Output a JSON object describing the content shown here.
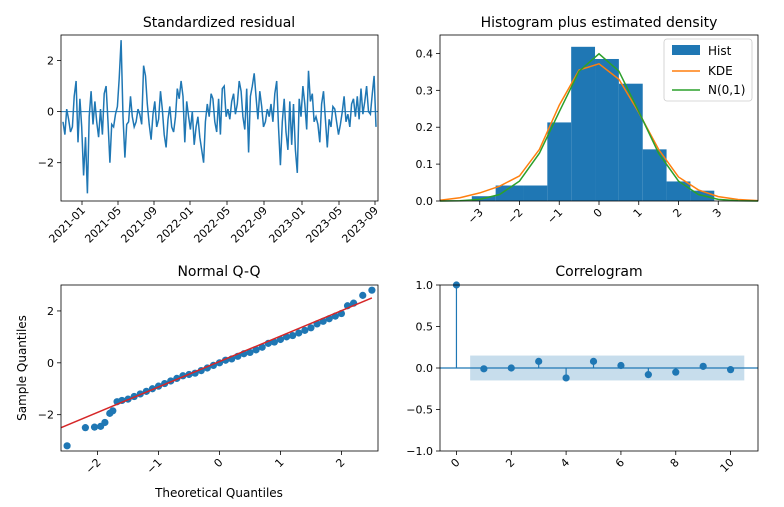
{
  "chart_data": [
    {
      "type": "line",
      "title": "Standardized residual",
      "xlabel": "",
      "ylabel": "",
      "ylim": [
        -3.5,
        3.0
      ],
      "y_ticks": [
        -2,
        0,
        2
      ],
      "x_tick_labels": [
        "2021-01",
        "2021-05",
        "2021-09",
        "2022-01",
        "2022-05",
        "2022-09",
        "2023-01",
        "2023-05",
        "2023-09"
      ],
      "series": [
        {
          "name": "residual",
          "color": "#1f77b4",
          "values": [
            -0.4,
            -0.9,
            0.1,
            -0.3,
            -0.8,
            -0.6,
            0.6,
            1.2,
            -1.2,
            0.5,
            -0.6,
            -2.5,
            -1.0,
            -3.2,
            -0.2,
            0.8,
            -0.5,
            0.4,
            -0.4,
            -1.0,
            0.1,
            -0.9,
            0.7,
            1.0,
            -0.4,
            -2.0,
            -0.5,
            -0.6,
            -0.1,
            0.2,
            1.3,
            2.8,
            -0.2,
            -1.8,
            -0.5,
            -0.4,
            0.6,
            -0.2,
            -0.6,
            -0.4,
            0.1,
            -0.1,
            -0.5,
            1.8,
            1.4,
            0.3,
            -0.5,
            -1.1,
            -0.1,
            0.4,
            -0.6,
            -0.3,
            0.8,
            0.1,
            -0.9,
            -1.4,
            -0.3,
            0.2,
            -0.6,
            -0.8,
            -0.2,
            0.9,
            0.5,
            1.2,
            0.6,
            -1.2,
            0.4,
            -0.2,
            -0.7,
            0.0,
            -1.3,
            -0.6,
            -0.2,
            -1.0,
            -1.5,
            -2.0,
            -0.4,
            0.3,
            -0.2,
            0.7,
            0.5,
            -0.4,
            -0.8,
            0.5,
            -0.9,
            0.9,
            1.0,
            -0.2,
            0.1,
            -0.3,
            0.4,
            0.7,
            -0.1,
            0.3,
            1.2,
            0.8,
            -0.2,
            -0.7,
            0.9,
            -1.6,
            0.6,
            1.0,
            1.5,
            0.6,
            -0.3,
            0.8,
            0.2,
            -0.6,
            -0.4,
            0.1,
            -0.2,
            0.3,
            -0.4,
            0.7,
            1.2,
            -0.6,
            -2.1,
            -0.4,
            0.5,
            -0.8,
            -1.5,
            0.4,
            -1.3,
            0.3,
            -1.5,
            -2.4,
            0.5,
            -0.2,
            1.0,
            0.3,
            -0.7,
            1.6,
            0.4,
            0.7,
            -0.4,
            -0.2,
            -0.5,
            -1.2,
            0.3,
            0.8,
            -0.3,
            -1.4,
            -0.3,
            -0.6,
            0.2,
            0.1,
            -0.4,
            -0.9,
            -0.5,
            0.0,
            0.6,
            -0.4,
            -0.1,
            -0.6,
            0.3,
            0.5,
            -0.2,
            0.6,
            -0.3,
            0.9,
            -0.1,
            0.4,
            1.0,
            0.0,
            -0.1,
            0.7,
            1.4,
            -0.6
          ]
        }
      ]
    },
    {
      "type": "bar",
      "title": "Histogram plus estimated density",
      "xlim": [
        -4,
        4
      ],
      "ylim": [
        0,
        0.45
      ],
      "x_ticks": [
        "−3",
        "−2",
        "−1",
        "0",
        "1",
        "2",
        "3"
      ],
      "y_ticks": [
        "0.0",
        "0.1",
        "0.2",
        "0.3",
        "0.4"
      ],
      "bin_edges": [
        -3.2,
        -2.6,
        -1.9,
        -1.3,
        -0.7,
        -0.1,
        0.5,
        1.1,
        1.7,
        2.3,
        2.9
      ],
      "values": [
        0.013,
        0.042,
        0.042,
        0.213,
        0.418,
        0.385,
        0.318,
        0.14,
        0.053,
        0.028
      ],
      "legend": [
        "Hist",
        "KDE",
        "N(0,1)"
      ],
      "legend_position": "top-right",
      "series": [
        {
          "name": "Hist",
          "color": "#1f77b4"
        },
        {
          "name": "KDE",
          "color": "#ff7f0e",
          "x": [
            -4,
            -3.5,
            -3,
            -2.5,
            -2,
            -1.5,
            -1,
            -0.5,
            0,
            0.5,
            1,
            1.5,
            2,
            2.5,
            3,
            3.5,
            4
          ],
          "y": [
            0.002,
            0.009,
            0.022,
            0.04,
            0.068,
            0.14,
            0.26,
            0.355,
            0.372,
            0.33,
            0.24,
            0.14,
            0.065,
            0.03,
            0.012,
            0.004,
            0.001
          ]
        },
        {
          "name": "N(0,1)",
          "color": "#2ca02c",
          "x": [
            -4,
            -3.5,
            -3,
            -2.5,
            -2,
            -1.5,
            -1,
            -0.5,
            0,
            0.5,
            1,
            1.5,
            2,
            2.5,
            3,
            3.5,
            4
          ],
          "y": [
            0.0001,
            0.0009,
            0.0044,
            0.0175,
            0.054,
            0.1295,
            0.242,
            0.352,
            0.399,
            0.352,
            0.242,
            0.1295,
            0.054,
            0.0175,
            0.0044,
            0.0009,
            0.0001
          ]
        }
      ]
    },
    {
      "type": "scatter",
      "title": "Normal Q-Q",
      "xlabel": "Theoretical Quantiles",
      "ylabel": "Sample Quantiles",
      "xlim": [
        -2.6,
        2.6
      ],
      "ylim": [
        -3.4,
        3.0
      ],
      "x_ticks": [
        "−2",
        "−1",
        "0",
        "1",
        "2"
      ],
      "y_ticks": [
        "−2",
        "0",
        "2"
      ],
      "reference_line": {
        "x": [
          -2.6,
          2.5
        ],
        "y": [
          -2.5,
          2.5
        ],
        "color": "#d62728"
      },
      "series": [
        {
          "name": "quantiles",
          "color": "#1f77b4",
          "x": [
            -2.5,
            -2.2,
            -2.05,
            -1.95,
            -1.88,
            -1.8,
            -1.75,
            -1.68,
            -1.6,
            -1.5,
            -1.4,
            -1.3,
            -1.2,
            -1.1,
            -1.0,
            -0.9,
            -0.8,
            -0.7,
            -0.6,
            -0.5,
            -0.4,
            -0.3,
            -0.2,
            -0.1,
            0.0,
            0.1,
            0.2,
            0.3,
            0.4,
            0.5,
            0.6,
            0.7,
            0.8,
            0.9,
            1.0,
            1.1,
            1.2,
            1.3,
            1.4,
            1.5,
            1.6,
            1.7,
            1.8,
            1.9,
            2.0,
            2.1,
            2.2,
            2.35,
            2.5
          ],
          "y": [
            -3.2,
            -2.5,
            -2.48,
            -2.45,
            -2.3,
            -1.95,
            -1.85,
            -1.5,
            -1.45,
            -1.4,
            -1.3,
            -1.2,
            -1.1,
            -1.0,
            -0.9,
            -0.8,
            -0.7,
            -0.6,
            -0.5,
            -0.45,
            -0.4,
            -0.3,
            -0.2,
            -0.1,
            0.0,
            0.1,
            0.15,
            0.25,
            0.35,
            0.4,
            0.5,
            0.6,
            0.75,
            0.8,
            0.9,
            1.0,
            1.05,
            1.15,
            1.25,
            1.35,
            1.5,
            1.6,
            1.7,
            1.8,
            1.9,
            2.2,
            2.3,
            2.6,
            2.8
          ]
        }
      ]
    },
    {
      "type": "bar",
      "title": "Correlogram",
      "xlim": [
        -0.6,
        11
      ],
      "ylim": [
        -1.0,
        1.0
      ],
      "x_ticks": [
        "0",
        "2",
        "4",
        "6",
        "8",
        "10"
      ],
      "y_ticks": [
        "−1.0",
        "−0.5",
        "0.0",
        "0.5",
        "1.0"
      ],
      "lags": [
        0,
        1,
        2,
        3,
        4,
        5,
        6,
        7,
        8,
        9,
        10
      ],
      "values": [
        1.0,
        -0.01,
        0.0,
        0.08,
        -0.12,
        0.08,
        0.03,
        -0.08,
        -0.05,
        0.02,
        -0.02
      ],
      "confidence_band": 0.15,
      "series": [
        {
          "name": "acf",
          "color": "#1f77b4"
        }
      ]
    }
  ]
}
